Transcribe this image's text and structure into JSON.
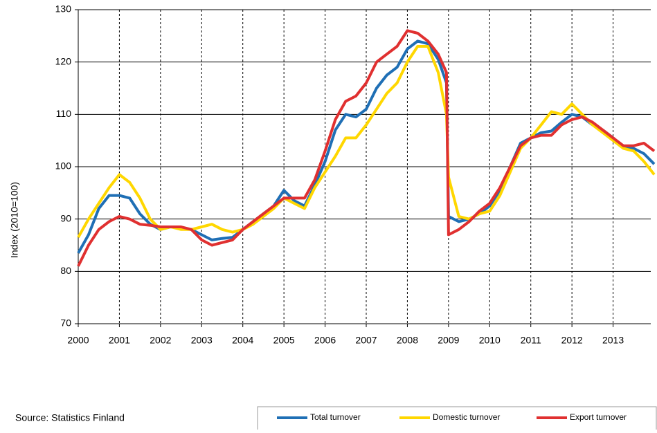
{
  "chart_data": {
    "type": "line",
    "ylabel": "Index (2010=100)",
    "source": "Source: Statistics Finland",
    "xlim": [
      2000,
      2014
    ],
    "xticks": [
      2000,
      2001,
      2002,
      2003,
      2004,
      2005,
      2006,
      2007,
      2008,
      2009,
      2010,
      2011,
      2012,
      2013
    ],
    "ylim": [
      70,
      130
    ],
    "yticks": [
      70,
      80,
      90,
      100,
      110,
      120,
      130
    ],
    "grid": true,
    "legend": "bottom-right",
    "x": [
      2000,
      2000.25,
      2000.5,
      2000.75,
      2001,
      2001.25,
      2001.5,
      2001.75,
      2002,
      2002.25,
      2002.5,
      2002.75,
      2003,
      2003.25,
      2003.5,
      2003.75,
      2004,
      2004.25,
      2004.5,
      2004.75,
      2005,
      2005.25,
      2005.5,
      2005.75,
      2006,
      2006.25,
      2006.5,
      2006.75,
      2007,
      2007.25,
      2007.5,
      2007.75,
      2008,
      2008.25,
      2008.5,
      2008.75,
      2008.95,
      2009,
      2009.25,
      2009.5,
      2009.75,
      2010,
      2010.25,
      2010.5,
      2010.75,
      2011,
      2011.25,
      2011.5,
      2011.75,
      2012,
      2012.25,
      2012.5,
      2012.75,
      2013,
      2013.25,
      2013.5,
      2013.75,
      2014
    ],
    "series": [
      {
        "name": "Total turnover",
        "color": "#1f6fb5",
        "values": [
          83.5,
          87,
          92,
          94.5,
          94.5,
          94,
          91,
          89,
          88,
          88.5,
          88.2,
          88,
          87,
          86,
          86.3,
          86.5,
          88,
          89.5,
          91,
          92.5,
          95.5,
          93.5,
          92.5,
          96.5,
          101,
          107,
          110,
          109.5,
          111,
          115,
          117.5,
          119,
          122.5,
          124,
          123.5,
          120.5,
          116,
          90.5,
          89.5,
          90,
          91,
          92.5,
          95.5,
          100,
          104.5,
          105.5,
          106.5,
          106.8,
          108.5,
          110,
          109.5,
          108,
          107,
          105.5,
          103.8,
          103.5,
          102.5,
          100.5
        ]
      },
      {
        "name": "Domestic turnover",
        "color": "#ffd700",
        "values": [
          86.5,
          90,
          93,
          96,
          98.5,
          97,
          94,
          90,
          88,
          88.5,
          88,
          88,
          88.5,
          89,
          88,
          87.5,
          88,
          89,
          90.5,
          92,
          94,
          93,
          92,
          96,
          99,
          102,
          105.5,
          105.5,
          108,
          111,
          114,
          116,
          120,
          123,
          123,
          118,
          110,
          98,
          90.5,
          90,
          91,
          91.5,
          94.5,
          99,
          103.5,
          105.5,
          108,
          110.5,
          110,
          112,
          110,
          108,
          106.5,
          105,
          103.5,
          103,
          101,
          98.5
        ]
      },
      {
        "name": "Export turnover",
        "color": "#e03030",
        "values": [
          81,
          85,
          88,
          89.5,
          90.5,
          90,
          89,
          88.8,
          88.5,
          88.5,
          88.5,
          88,
          86,
          85,
          85.5,
          86,
          88,
          89.5,
          91,
          92.5,
          94,
          94,
          94,
          97.5,
          103,
          109,
          112.5,
          113.5,
          116,
          120,
          121.5,
          123,
          126,
          125.5,
          124,
          121.5,
          118,
          87,
          88,
          89.5,
          91.5,
          93,
          96,
          100,
          104,
          105.5,
          106,
          106,
          108,
          109,
          109.5,
          108.5,
          107,
          105.5,
          104,
          104,
          104.5,
          103
        ]
      }
    ]
  }
}
